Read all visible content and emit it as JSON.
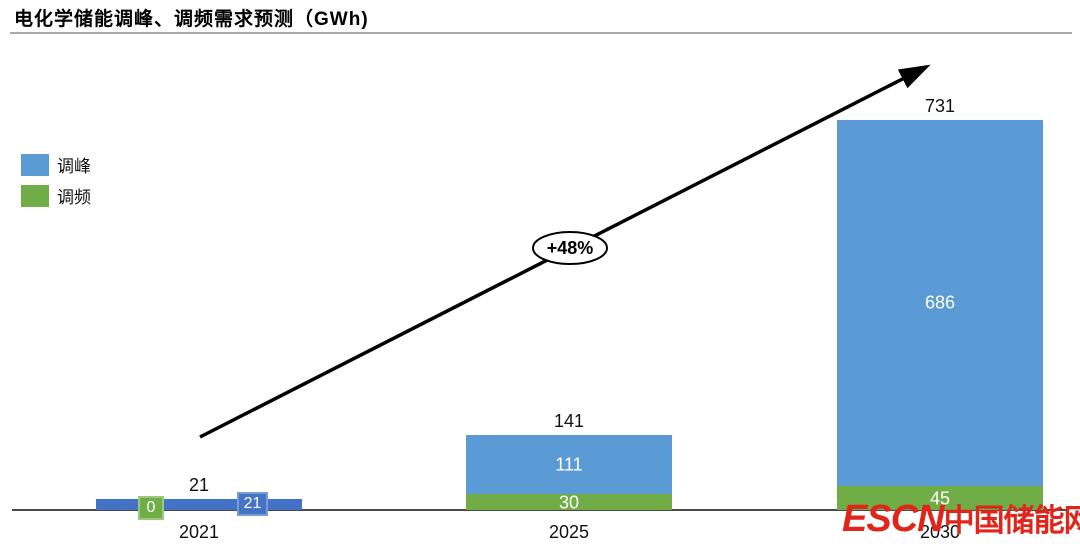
{
  "title": "电化学储能调峰、调频需求预测（GWh)",
  "legend": {
    "items": [
      {
        "label": "调峰",
        "color": "#5B9BD5"
      },
      {
        "label": "调频",
        "color": "#70AD47"
      }
    ]
  },
  "watermark": {
    "latin": "ESCN",
    "chinese": "中国储能网",
    "color": "#E1251B"
  },
  "chart_data": {
    "type": "bar",
    "stacked": true,
    "title": "电化学储能调峰、调频需求预测（GWh)",
    "categories": [
      "2021",
      "2025",
      "2030"
    ],
    "series": [
      {
        "name": "调峰",
        "color": "#5B9BD5",
        "values": [
          21,
          111,
          686
        ]
      },
      {
        "name": "调频",
        "color": "#70AD47",
        "values": [
          0,
          30,
          45
        ]
      }
    ],
    "totals": [
      21,
      141,
      731
    ],
    "segment_labels": [
      [
        "21",
        "0"
      ],
      [
        "111",
        "30"
      ],
      [
        "686",
        "45"
      ]
    ],
    "label_modes": [
      "boxed",
      "inside",
      "inside"
    ],
    "bar_color_overrides": [
      {
        "category_index": 0,
        "series_index": 0,
        "color": "#4472C4"
      }
    ],
    "boxed_label_colors": {
      "peak_fill": "#4472C4",
      "peak_border": "#7C9AD6",
      "freq_fill": "#70AD47",
      "freq_border": "#9DC97E"
    },
    "annotation": {
      "text": "+48%"
    },
    "ylim": [
      0,
      731
    ],
    "xlabel": "",
    "ylabel": "",
    "grid": false,
    "legend_position": "left"
  }
}
